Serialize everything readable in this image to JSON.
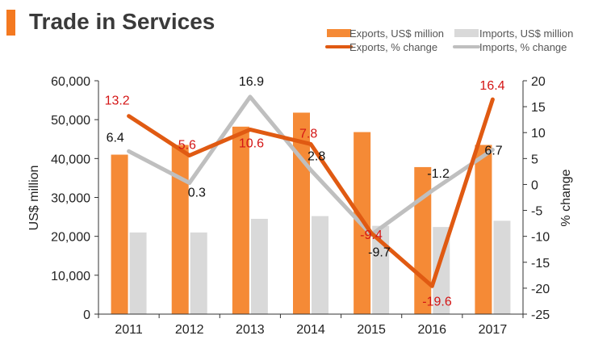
{
  "colors": {
    "accent": "#f47920",
    "exports_bar": "#f58a36",
    "imports_bar": "#d9d9d9",
    "exports_line": "#e05a12",
    "imports_line": "#bfbfbf",
    "label_red": "#d41515",
    "label_black": "#111111",
    "axis": "#333333"
  },
  "chart_data": {
    "type": "bar",
    "title": "Trade in Services",
    "categories": [
      "2011",
      "2012",
      "2013",
      "2014",
      "2015",
      "2016",
      "2017"
    ],
    "ylabel": "US$ million",
    "y2label": "% change",
    "ylim": [
      0,
      60000
    ],
    "y2lim": [
      -25,
      20
    ],
    "yticks": [
      "0",
      "10,000",
      "20,000",
      "30,000",
      "40,000",
      "50,000",
      "60,000"
    ],
    "y2ticks": [
      "-25",
      "-20",
      "-15",
      "-10",
      "-5",
      "0",
      "5",
      "10",
      "15",
      "20"
    ],
    "grid": false,
    "legend_position": "top-right",
    "series": [
      {
        "name": "Exports, US$ million",
        "type": "bar",
        "axis": "left",
        "values": [
          41000,
          43500,
          48200,
          51800,
          46800,
          37800,
          43500
        ]
      },
      {
        "name": "Imports, US$ million",
        "type": "bar",
        "axis": "left",
        "values": [
          21000,
          21000,
          24500,
          25200,
          22700,
          22400,
          24000
        ]
      },
      {
        "name": "Exports, % change",
        "type": "line",
        "axis": "right",
        "values": [
          13.2,
          5.6,
          10.6,
          7.8,
          -9.4,
          -19.6,
          16.4
        ],
        "labels": [
          "13.2",
          "5.6",
          "10.6",
          "7.8",
          "-9.4",
          "-19.6",
          "16.4"
        ]
      },
      {
        "name": "Imports, % change",
        "type": "line",
        "axis": "right",
        "values": [
          6.4,
          0.3,
          16.9,
          2.8,
          -9.7,
          -1.2,
          6.7
        ],
        "labels": [
          "6.4",
          "0.3",
          "16.9",
          "2.8",
          "-9.7",
          "-1.2",
          "6.7"
        ]
      }
    ]
  }
}
